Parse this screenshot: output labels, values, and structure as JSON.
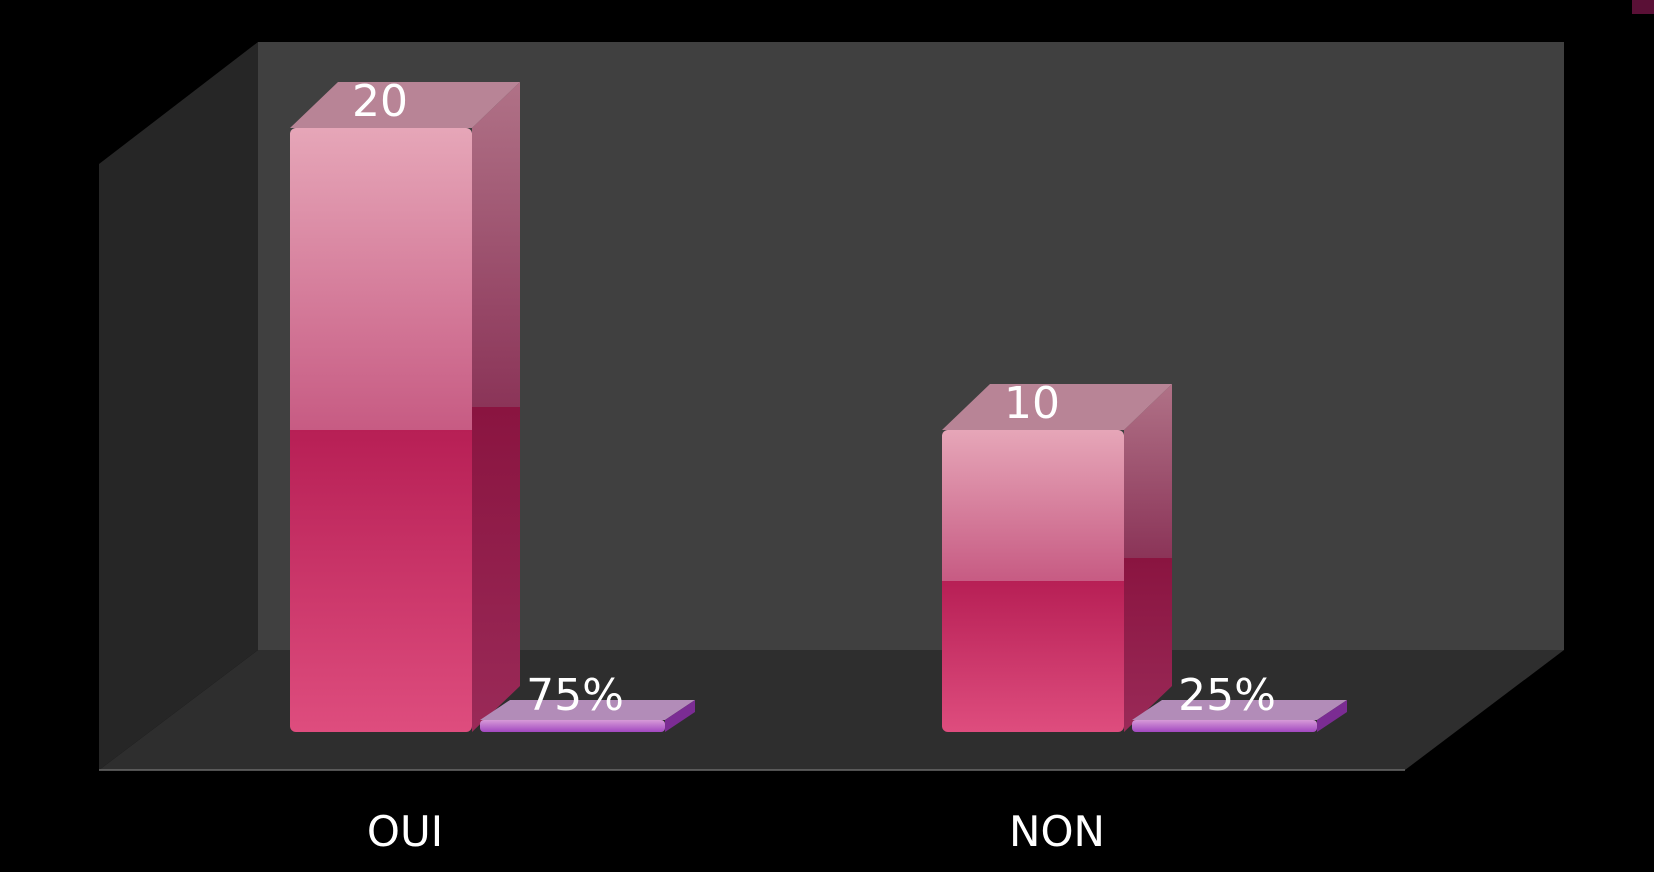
{
  "chart_data": {
    "type": "bar",
    "style": "3d-clustered-columns",
    "categories": [
      "OUI",
      "NON"
    ],
    "series": [
      {
        "values": [
          20,
          10
        ],
        "data_labels": [
          "20",
          "10"
        ],
        "color_top": "#e4a4b6",
        "color_bottom": "#d94a7c",
        "color_side": "#8e1e4a"
      },
      {
        "values": [
          0.75,
          0.25
        ],
        "data_labels": [
          "75%",
          "25%"
        ],
        "color_top": "#c98fc9",
        "color_bottom": "#a24ec0",
        "color_side": "#7b2c93"
      }
    ],
    "ylim": [
      0,
      20
    ],
    "grid": false,
    "legend": "none"
  },
  "colors": {
    "background": "#000000",
    "wall_back": "#404040",
    "wall_side": "#262626",
    "floor": "#2e2e2e",
    "text": "#ffffff",
    "corner_accent": "#5a1036"
  }
}
